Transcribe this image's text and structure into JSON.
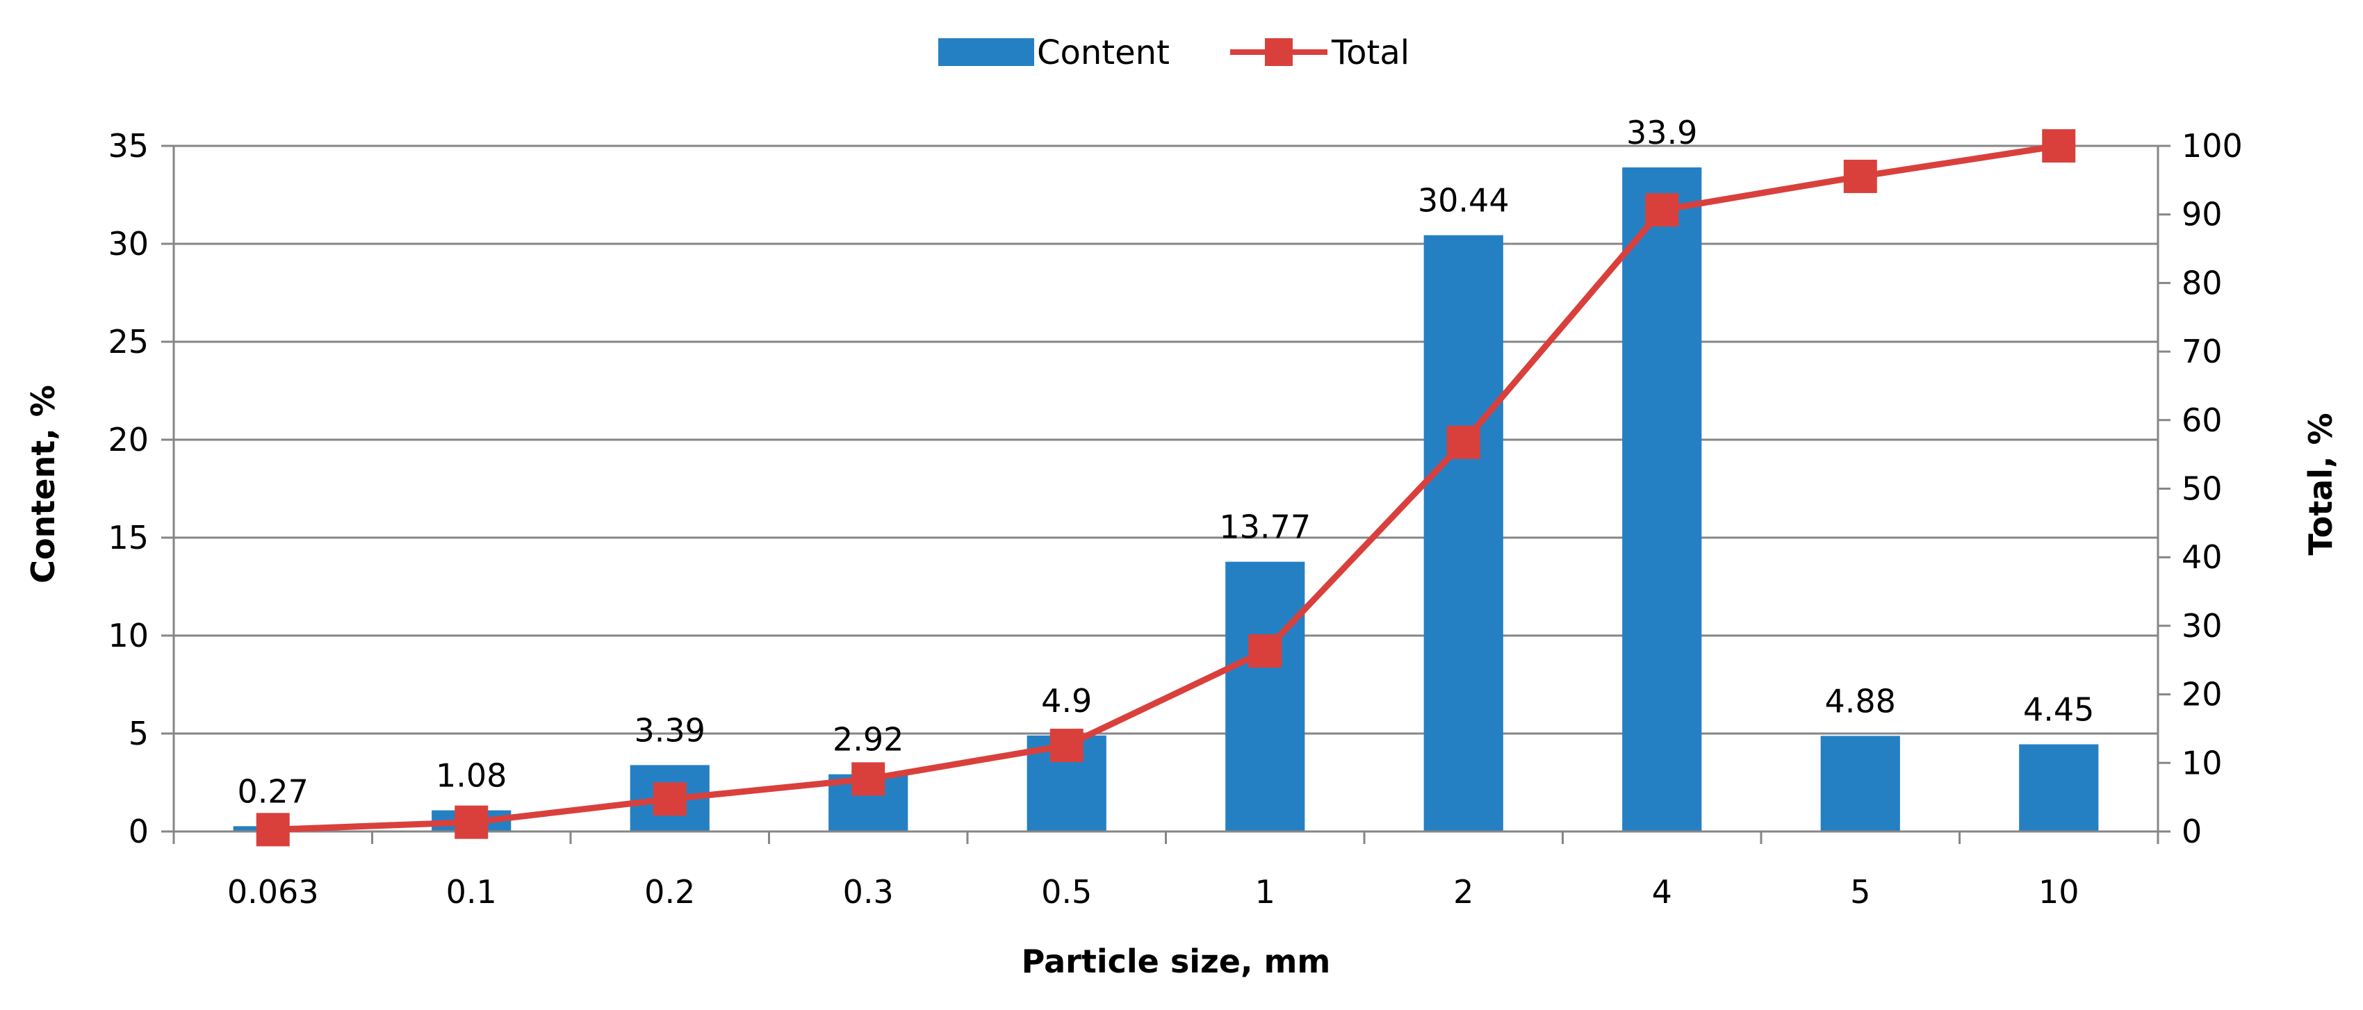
{
  "chart_data": {
    "type": "bar",
    "categories": [
      "0.063",
      "0.1",
      "0.2",
      "0.3",
      "0.5",
      "1",
      "2",
      "4",
      "5",
      "10"
    ],
    "xlabel": "Particle size, mm",
    "series": [
      {
        "name": "Content",
        "kind": "bar",
        "axis": "left",
        "values": [
          0.27,
          1.08,
          3.39,
          2.92,
          4.9,
          13.77,
          30.44,
          33.9,
          4.88,
          4.45
        ],
        "labels": [
          "0.27",
          "1.08",
          "3.39",
          "2.92",
          "4.9",
          "13.77",
          "30.44",
          "33.9",
          "4.88",
          "4.45"
        ]
      },
      {
        "name": "Total",
        "kind": "line",
        "axis": "right",
        "marker": "square",
        "values": [
          0.27,
          1.35,
          4.74,
          7.66,
          12.56,
          26.33,
          56.77,
          90.67,
          95.55,
          100
        ]
      }
    ],
    "y_left": {
      "label": "Content, %",
      "min": 0,
      "max": 35,
      "ticks": [
        "0",
        "5",
        "10",
        "15",
        "20",
        "25",
        "30",
        "35"
      ]
    },
    "y_right": {
      "label": "Total, %",
      "min": 0,
      "max": 100,
      "ticks": [
        "0",
        "10",
        "20",
        "30",
        "40",
        "50",
        "60",
        "70",
        "80",
        "90",
        "100"
      ]
    },
    "grid": true,
    "legend_position": "top-center"
  },
  "colors": {
    "bar": "#2580c3",
    "line": "#d9403c",
    "grid": "#868686",
    "axis": "#868686"
  }
}
